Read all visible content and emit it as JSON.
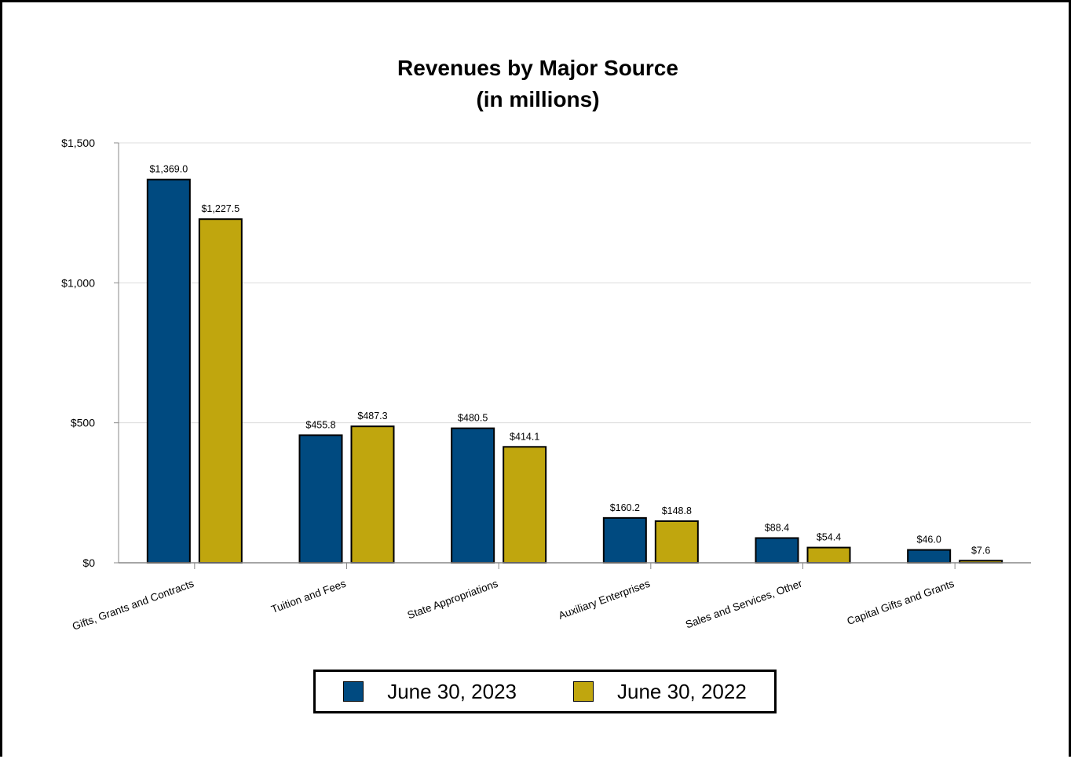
{
  "chart_data": {
    "type": "bar",
    "title": "Revenues by Major Source",
    "subtitle": "(in millions)",
    "categories": [
      "Gifts, Grants and Contracts",
      "Tuition and Fees",
      "State Appropriations",
      "Auxiliary Enterprises",
      "Sales and Services, Other",
      "Capital Gifts and Grants"
    ],
    "series": [
      {
        "name": "June 30, 2023",
        "color": "#004A80",
        "values": [
          1369.0,
          455.8,
          480.5,
          160.2,
          88.4,
          46.0
        ],
        "labels": [
          "$1,369.0",
          "$455.8",
          "$480.5",
          "$160.2",
          "$88.4",
          "$46.0"
        ]
      },
      {
        "name": "June 30, 2022",
        "color": "#C0A60E",
        "values": [
          1227.5,
          487.3,
          414.1,
          148.8,
          54.4,
          7.6
        ],
        "labels": [
          "$1,227.5",
          "$487.3",
          "$414.1",
          "$148.8",
          "$54.4",
          "$7.6"
        ]
      }
    ],
    "ylim": [
      0,
      1500
    ],
    "yticks": [
      0,
      500,
      1000,
      1500
    ],
    "ytick_labels": [
      "$0",
      "$500",
      "$1,000",
      "$1,500"
    ],
    "xlabel": "",
    "ylabel": "",
    "grid": true,
    "legend": "bottom-center"
  }
}
